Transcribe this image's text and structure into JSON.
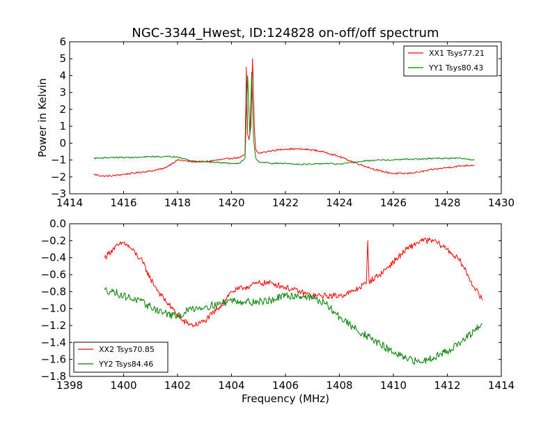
{
  "chart_data": [
    {
      "type": "line",
      "title": "NGC-3344_Hwest, ID:124828 on-off/off spectrum",
      "xlabel": "",
      "ylabel": "Power in Kelvin",
      "xlim": [
        1414,
        1430
      ],
      "ylim": [
        -3,
        6
      ],
      "xticks": [
        1414,
        1416,
        1418,
        1420,
        1422,
        1424,
        1426,
        1428,
        1430
      ],
      "yticks": [
        -3,
        -2,
        -1,
        0,
        1,
        2,
        3,
        4,
        5,
        6
      ],
      "xtick_labels": [
        "1414",
        "1416",
        "1418",
        "1420",
        "1422",
        "1424",
        "1426",
        "1428",
        "1430"
      ],
      "ytick_labels": [
        "−3",
        "−2",
        "−1",
        "0",
        "1",
        "2",
        "3",
        "4",
        "5",
        "6"
      ],
      "grid": false,
      "legend_position": "top-right",
      "series": [
        {
          "name": "XX1 Tsys77.21",
          "color": "#ff0000",
          "noise": 0.05,
          "x": [
            1414.9,
            1415.2,
            1415.5,
            1416.0,
            1416.5,
            1417.0,
            1417.5,
            1418.0,
            1418.5,
            1419.0,
            1419.5,
            1420.0,
            1420.3,
            1420.5,
            1420.55,
            1420.6,
            1420.65,
            1420.72,
            1420.78,
            1420.85,
            1420.9,
            1421.0,
            1421.5,
            1422.0,
            1422.5,
            1423.0,
            1423.5,
            1424.0,
            1424.5,
            1425.0,
            1425.5,
            1426.0,
            1426.5,
            1427.0,
            1427.5,
            1428.0,
            1428.5,
            1429.0
          ],
          "y": [
            -1.85,
            -1.95,
            -1.95,
            -1.85,
            -1.75,
            -1.65,
            -1.5,
            -1.0,
            -1.1,
            -1.1,
            -1.0,
            -0.9,
            -0.85,
            -0.7,
            4.5,
            0.5,
            0.2,
            1.0,
            5.0,
            0.8,
            -0.4,
            -0.6,
            -0.45,
            -0.35,
            -0.35,
            -0.4,
            -0.55,
            -0.8,
            -1.1,
            -1.4,
            -1.65,
            -1.8,
            -1.8,
            -1.7,
            -1.55,
            -1.45,
            -1.35,
            -1.3
          ]
        },
        {
          "name": "YY1 Tsys80.43",
          "color": "#008000",
          "noise": 0.04,
          "x": [
            1414.9,
            1415.5,
            1416.0,
            1416.5,
            1417.0,
            1417.5,
            1418.0,
            1418.5,
            1419.0,
            1419.5,
            1420.0,
            1420.3,
            1420.5,
            1420.6,
            1420.68,
            1420.75,
            1420.82,
            1420.9,
            1421.0,
            1421.5,
            1422.0,
            1422.5,
            1423.0,
            1423.5,
            1424.0,
            1424.5,
            1425.0,
            1425.5,
            1426.0,
            1426.5,
            1427.0,
            1427.5,
            1428.0,
            1428.5,
            1429.0
          ],
          "y": [
            -0.9,
            -0.85,
            -0.85,
            -0.85,
            -0.8,
            -0.8,
            -0.8,
            -1.05,
            -1.1,
            -1.15,
            -1.2,
            -1.2,
            -0.9,
            4.0,
            0.5,
            4.2,
            0.2,
            -0.9,
            -1.1,
            -1.2,
            -1.2,
            -1.25,
            -1.25,
            -1.2,
            -1.25,
            -1.15,
            -1.05,
            -1.0,
            -1.0,
            -0.95,
            -0.95,
            -0.9,
            -0.9,
            -0.9,
            -1.0
          ]
        }
      ]
    },
    {
      "type": "line",
      "title": "",
      "xlabel": "Frequency (MHz)",
      "ylabel": "",
      "xlim": [
        1398,
        1414
      ],
      "ylim": [
        -1.8,
        0.0
      ],
      "xticks": [
        1398,
        1400,
        1402,
        1404,
        1406,
        1408,
        1410,
        1412,
        1414
      ],
      "yticks": [
        -1.8,
        -1.6,
        -1.4,
        -1.2,
        -1.0,
        -0.8,
        -0.6,
        -0.4,
        -0.2,
        0.0
      ],
      "xtick_labels": [
        "1398",
        "1400",
        "1402",
        "1404",
        "1406",
        "1408",
        "1410",
        "1412",
        "1414"
      ],
      "ytick_labels": [
        "−1.8",
        "−1.6",
        "−1.4",
        "−1.2",
        "−1.0",
        "−0.8",
        "−0.6",
        "−0.4",
        "−0.2",
        "0.0"
      ],
      "grid": false,
      "legend_position": "bottom-left",
      "series": [
        {
          "name": "XX2 Tsys70.85",
          "color": "#ff0000",
          "noise": 0.035,
          "x": [
            1399.3,
            1399.6,
            1400.0,
            1400.3,
            1400.7,
            1401.0,
            1401.4,
            1401.8,
            1402.2,
            1402.6,
            1403.0,
            1403.5,
            1404.0,
            1404.5,
            1405.0,
            1405.5,
            1406.0,
            1406.5,
            1407.0,
            1407.5,
            1408.0,
            1408.5,
            1409.0,
            1409.05,
            1409.1,
            1409.5,
            1410.0,
            1410.5,
            1411.0,
            1411.5,
            1412.0,
            1412.5,
            1413.0,
            1413.3
          ],
          "y": [
            -0.4,
            -0.3,
            -0.22,
            -0.3,
            -0.45,
            -0.65,
            -0.85,
            -1.0,
            -1.15,
            -1.2,
            -1.15,
            -1.0,
            -0.8,
            -0.75,
            -0.7,
            -0.7,
            -0.75,
            -0.8,
            -0.85,
            -0.85,
            -0.85,
            -0.8,
            -0.7,
            -0.2,
            -0.68,
            -0.6,
            -0.45,
            -0.3,
            -0.2,
            -0.2,
            -0.3,
            -0.45,
            -0.75,
            -0.9
          ]
        },
        {
          "name": "YY2 Tsys84.46",
          "color": "#008000",
          "noise": 0.045,
          "x": [
            1399.3,
            1399.6,
            1400.0,
            1400.5,
            1401.0,
            1401.5,
            1402.0,
            1402.5,
            1403.0,
            1403.5,
            1404.0,
            1404.5,
            1405.0,
            1405.5,
            1406.0,
            1406.5,
            1407.0,
            1407.5,
            1408.0,
            1408.5,
            1409.0,
            1409.5,
            1410.0,
            1410.5,
            1411.0,
            1411.5,
            1412.0,
            1412.5,
            1413.0,
            1413.3
          ],
          "y": [
            -0.78,
            -0.8,
            -0.85,
            -0.9,
            -0.98,
            -1.05,
            -1.1,
            -1.0,
            -0.98,
            -0.95,
            -0.9,
            -0.92,
            -0.92,
            -0.9,
            -0.85,
            -0.85,
            -0.87,
            -0.95,
            -1.1,
            -1.22,
            -1.32,
            -1.42,
            -1.52,
            -1.6,
            -1.63,
            -1.57,
            -1.5,
            -1.4,
            -1.27,
            -1.18
          ]
        }
      ]
    }
  ]
}
